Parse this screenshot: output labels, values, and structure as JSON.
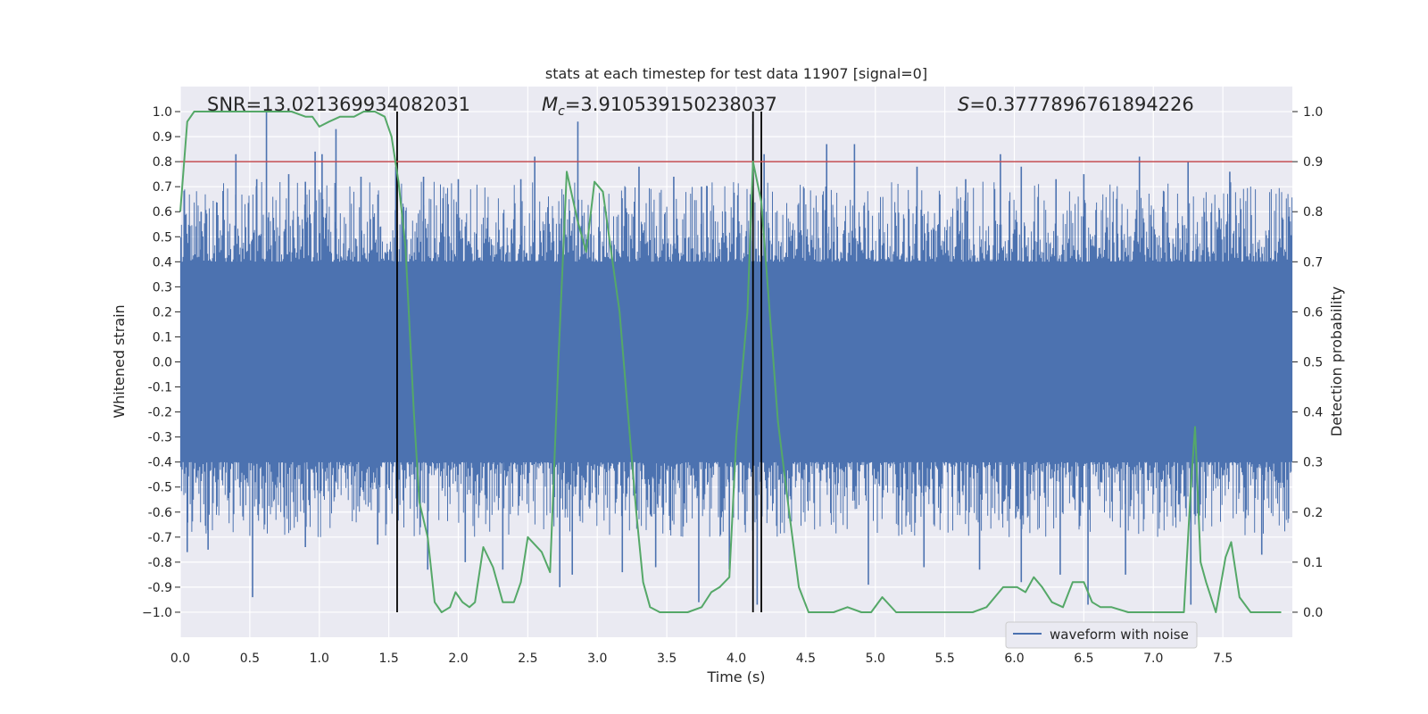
{
  "chart_data": {
    "type": "line",
    "title": "stats at each timestep for test data 11907 [signal=0]",
    "xlabel": "Time (s)",
    "ylabel_left": "Whitened strain",
    "ylabel_right": "Detection probability",
    "xlim": [
      0.0,
      8.0
    ],
    "ylim_left": [
      -1.1,
      1.1
    ],
    "ylim_right": [
      -0.05,
      1.05
    ],
    "x_ticks": [
      "0.0",
      "0.5",
      "1.0",
      "1.5",
      "2.0",
      "2.5",
      "3.0",
      "3.5",
      "4.0",
      "4.5",
      "5.0",
      "5.5",
      "6.0",
      "6.5",
      "7.0",
      "7.5"
    ],
    "x_tick_values": [
      0.0,
      0.5,
      1.0,
      1.5,
      2.0,
      2.5,
      3.0,
      3.5,
      4.0,
      4.5,
      5.0,
      5.5,
      6.0,
      6.5,
      7.0,
      7.5
    ],
    "y_ticks_left": [
      "1.0",
      "0.9",
      "0.8",
      "0.7",
      "0.6",
      "0.5",
      "0.4",
      "0.3",
      "0.2",
      "0.1",
      "0.0",
      "-0.1",
      "-0.2",
      "-0.3",
      "-0.4",
      "-0.5",
      "-0.6",
      "-0.7",
      "-0.8",
      "-0.9",
      "−1.0"
    ],
    "y_tick_values_left": [
      1.0,
      0.9,
      0.8,
      0.7,
      0.6,
      0.5,
      0.4,
      0.3,
      0.2,
      0.1,
      0.0,
      -0.1,
      -0.2,
      -0.3,
      -0.4,
      -0.5,
      -0.6,
      -0.7,
      -0.8,
      -0.9,
      -1.0
    ],
    "y_ticks_right": [
      "1.0",
      "0.9",
      "0.8",
      "0.7",
      "0.6",
      "0.5",
      "0.4",
      "0.3",
      "0.2",
      "0.1",
      "0.0"
    ],
    "y_tick_values_right": [
      1.0,
      0.9,
      0.8,
      0.7,
      0.6,
      0.5,
      0.4,
      0.3,
      0.2,
      0.1,
      0.0
    ],
    "annotations": {
      "snr": "SNR=13.021369934082031",
      "mc_prefix": "M",
      "mc_sub": "c",
      "mc_value": "=3.910539150238037",
      "s_prefix": "S",
      "s_value": "=0.3777896761894226"
    },
    "legend": {
      "label": "waveform with noise",
      "position": "lower-right"
    },
    "threshold": {
      "value": 0.9,
      "axis": "right",
      "color": "#c44e52"
    },
    "vertical_lines": [
      1.56,
      4.12,
      4.18
    ],
    "waveform": {
      "name": "waveform with noise",
      "color": "#4c72b0",
      "core_amplitude": 0.4,
      "spike_peaks_pos": [
        [
          0.15,
          0.6
        ],
        [
          0.4,
          0.83
        ],
        [
          0.55,
          0.73
        ],
        [
          0.62,
          1.0
        ],
        [
          0.78,
          0.75
        ],
        [
          0.9,
          0.72
        ],
        [
          0.97,
          0.84
        ],
        [
          1.02,
          0.83
        ],
        [
          1.12,
          0.93
        ],
        [
          1.3,
          0.74
        ],
        [
          1.55,
          0.78
        ],
        [
          1.75,
          0.74
        ],
        [
          2.0,
          0.73
        ],
        [
          2.45,
          0.73
        ],
        [
          2.55,
          0.82
        ],
        [
          2.86,
          0.96
        ],
        [
          3.3,
          0.78
        ],
        [
          3.55,
          0.74
        ],
        [
          3.75,
          0.7
        ],
        [
          4.12,
          0.95
        ],
        [
          4.2,
          0.83
        ],
        [
          4.65,
          0.87
        ],
        [
          4.85,
          0.87
        ],
        [
          5.3,
          0.78
        ],
        [
          5.65,
          0.73
        ],
        [
          5.9,
          0.83
        ],
        [
          6.05,
          0.78
        ],
        [
          6.3,
          0.73
        ],
        [
          6.5,
          0.75
        ],
        [
          6.9,
          0.82
        ],
        [
          7.25,
          0.8
        ],
        [
          7.55,
          0.76
        ]
      ],
      "spike_peaks_neg": [
        [
          0.05,
          -0.76
        ],
        [
          0.2,
          -0.75
        ],
        [
          0.52,
          -0.94
        ],
        [
          0.9,
          -0.74
        ],
        [
          1.42,
          -0.73
        ],
        [
          1.78,
          -0.83
        ],
        [
          2.05,
          -0.8
        ],
        [
          2.32,
          -0.83
        ],
        [
          2.73,
          -0.9
        ],
        [
          2.82,
          -0.85
        ],
        [
          3.18,
          -0.84
        ],
        [
          3.42,
          -0.82
        ],
        [
          3.73,
          -0.96
        ],
        [
          3.95,
          -0.83
        ],
        [
          4.15,
          -0.97
        ],
        [
          4.95,
          -0.89
        ],
        [
          5.35,
          -0.82
        ],
        [
          5.75,
          -0.83
        ],
        [
          6.05,
          -0.88
        ],
        [
          6.33,
          -0.85
        ],
        [
          6.53,
          -0.97
        ],
        [
          6.8,
          -0.85
        ],
        [
          7.27,
          -0.97
        ],
        [
          7.78,
          -0.77
        ]
      ]
    },
    "series": [
      {
        "name": "Detection probability",
        "axis": "right",
        "color": "#55a868",
        "x": [
          0.0,
          0.05,
          0.1,
          0.2,
          0.35,
          0.5,
          0.65,
          0.8,
          0.9,
          0.95,
          1.0,
          1.07,
          1.15,
          1.25,
          1.32,
          1.4,
          1.47,
          1.52,
          1.57,
          1.62,
          1.68,
          1.72,
          1.78,
          1.83,
          1.88,
          1.94,
          1.98,
          2.03,
          2.08,
          2.12,
          2.18,
          2.25,
          2.32,
          2.4,
          2.45,
          2.5,
          2.6,
          2.66,
          2.72,
          2.78,
          2.86,
          2.92,
          2.98,
          3.04,
          3.1,
          3.16,
          3.22,
          3.28,
          3.33,
          3.38,
          3.45,
          3.55,
          3.65,
          3.75,
          3.82,
          3.88,
          3.95,
          4.0,
          4.08,
          4.12,
          4.18,
          4.24,
          4.3,
          4.38,
          4.45,
          4.52,
          4.6,
          4.7,
          4.8,
          4.9,
          4.97,
          5.05,
          5.15,
          5.25,
          5.35,
          5.5,
          5.6,
          5.7,
          5.8,
          5.92,
          6.02,
          6.08,
          6.14,
          6.2,
          6.27,
          6.35,
          6.42,
          6.5,
          6.56,
          6.62,
          6.7,
          6.82,
          6.92,
          7.05,
          7.15,
          7.22,
          7.27,
          7.3,
          7.34,
          7.38,
          7.45,
          7.52,
          7.56,
          7.62,
          7.7,
          7.8,
          7.92
        ],
        "y": [
          0.8,
          0.98,
          1.0,
          1.0,
          1.0,
          1.0,
          1.0,
          1.0,
          0.99,
          0.99,
          0.97,
          0.98,
          0.99,
          0.99,
          1.0,
          1.0,
          0.99,
          0.95,
          0.86,
          0.73,
          0.4,
          0.22,
          0.15,
          0.02,
          0.0,
          0.01,
          0.04,
          0.02,
          0.01,
          0.02,
          0.13,
          0.09,
          0.02,
          0.02,
          0.06,
          0.15,
          0.12,
          0.08,
          0.5,
          0.88,
          0.78,
          0.72,
          0.86,
          0.84,
          0.72,
          0.6,
          0.4,
          0.2,
          0.06,
          0.01,
          0.0,
          0.0,
          0.0,
          0.01,
          0.04,
          0.05,
          0.07,
          0.35,
          0.6,
          0.9,
          0.82,
          0.6,
          0.38,
          0.2,
          0.05,
          0.0,
          0.0,
          0.0,
          0.01,
          0.0,
          0.0,
          0.03,
          0.0,
          0.0,
          0.0,
          0.0,
          0.0,
          0.0,
          0.01,
          0.05,
          0.05,
          0.04,
          0.07,
          0.05,
          0.02,
          0.01,
          0.06,
          0.06,
          0.02,
          0.01,
          0.01,
          0.0,
          0.0,
          0.0,
          0.0,
          0.0,
          0.25,
          0.37,
          0.1,
          0.06,
          0.0,
          0.11,
          0.14,
          0.03,
          0.0,
          0.0,
          0.0
        ]
      }
    ]
  }
}
